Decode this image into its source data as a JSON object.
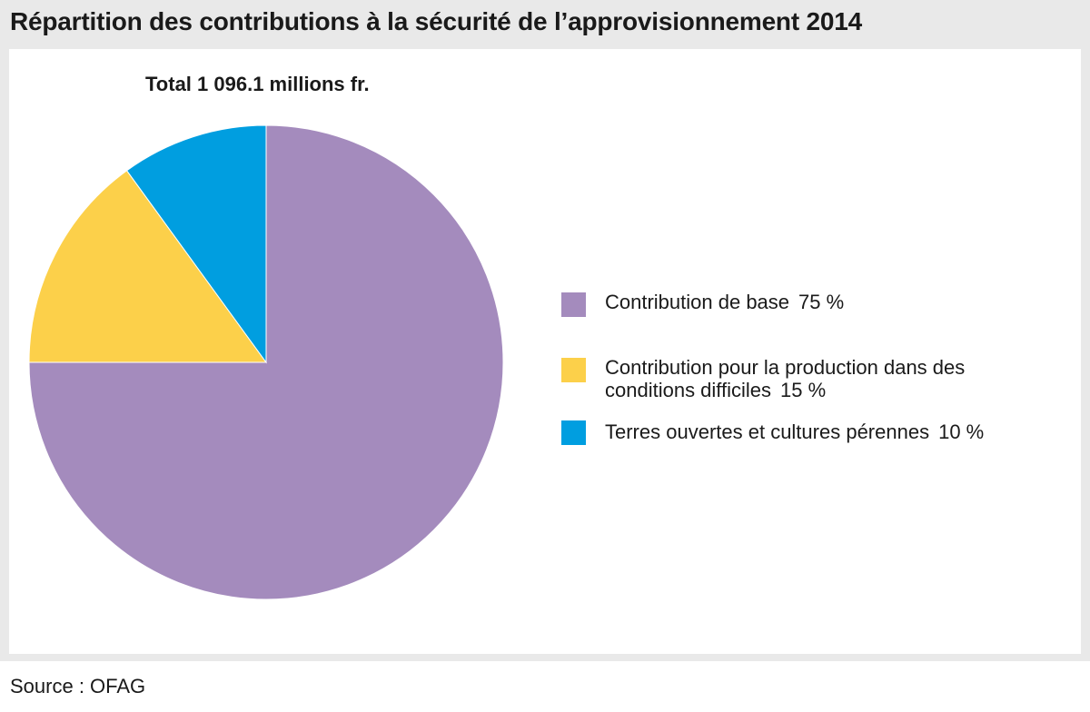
{
  "header": {
    "title": "Répartition des contributions à la sécurité de l’approvisionnement 2014"
  },
  "chart_data": {
    "type": "pie",
    "title": "Total 1 096.1 millions fr.",
    "slices": [
      {
        "label": "Contribution de base",
        "value": 75,
        "value_label": "75 %",
        "color": "#a48bbd"
      },
      {
        "label": "Contribution pour la production dans des conditions difficiles",
        "value": 15,
        "value_label": "15 %",
        "color": "#fcd04a"
      },
      {
        "label": "Terres ouvertes et cultures pérennes",
        "value": 10,
        "value_label": "10 %",
        "color": "#009ee0"
      }
    ],
    "legend_position": "right"
  },
  "footer": {
    "source": "Source : OFAG"
  }
}
